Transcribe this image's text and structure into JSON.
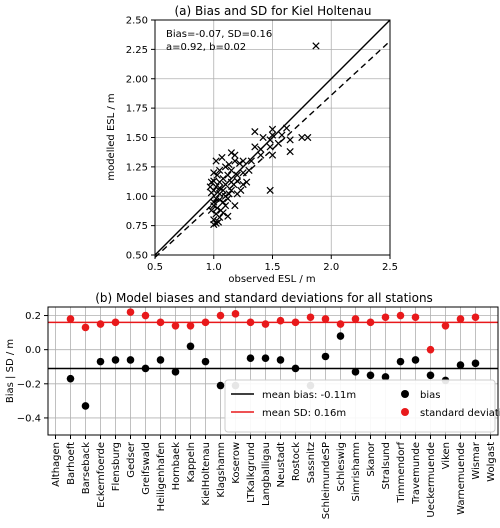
{
  "chart_data": [
    {
      "type": "scatter",
      "title": "(a) Bias and SD for Kiel Holtenau",
      "xlabel": "observed ESL / m",
      "ylabel": "modelled ESL / m",
      "xlim": [
        0.5,
        2.5
      ],
      "ylim": [
        0.5,
        2.5
      ],
      "xticks": [
        "0.5",
        "1.0",
        "1.5",
        "2.0",
        "2.5"
      ],
      "yticks": [
        "0.50",
        "0.75",
        "1.00",
        "1.25",
        "1.50",
        "1.75",
        "2.00",
        "2.25",
        "2.50"
      ],
      "grid": true,
      "annotation_lines": [
        "Bias=-0.07, SD=0.16",
        "a=0.92, b=0.02"
      ],
      "identity_line": {
        "style": "solid"
      },
      "fit_line": {
        "style": "dashed",
        "slope": 0.92,
        "intercept": 0.02
      },
      "points": [
        [
          1.87,
          2.28
        ],
        [
          1.8,
          1.5
        ],
        [
          1.75,
          1.5
        ],
        [
          1.65,
          1.48
        ],
        [
          1.65,
          1.38
        ],
        [
          1.62,
          1.58
        ],
        [
          1.58,
          1.52
        ],
        [
          1.55,
          1.45
        ],
        [
          1.5,
          1.57
        ],
        [
          1.5,
          1.52
        ],
        [
          1.48,
          1.48
        ],
        [
          1.48,
          1.42
        ],
        [
          1.5,
          1.35
        ],
        [
          1.48,
          1.05
        ],
        [
          1.42,
          1.5
        ],
        [
          1.4,
          1.4
        ],
        [
          1.4,
          1.35
        ],
        [
          1.35,
          1.55
        ],
        [
          1.35,
          1.42
        ],
        [
          1.32,
          1.3
        ],
        [
          1.3,
          1.22
        ],
        [
          1.28,
          1.12
        ],
        [
          1.25,
          1.2
        ],
        [
          1.25,
          1.1
        ],
        [
          1.23,
          1.05
        ],
        [
          1.22,
          1.28
        ],
        [
          1.2,
          1.18
        ],
        [
          1.2,
          1.13
        ],
        [
          1.2,
          1.02
        ],
        [
          1.18,
          1.35
        ],
        [
          1.18,
          1.3
        ],
        [
          1.17,
          1.1
        ],
        [
          1.15,
          1.37
        ],
        [
          1.15,
          1.22
        ],
        [
          1.15,
          1.12
        ],
        [
          1.15,
          1.05
        ],
        [
          1.13,
          1.27
        ],
        [
          1.12,
          1.18
        ],
        [
          1.12,
          0.98
        ],
        [
          1.1,
          1.25
        ],
        [
          1.1,
          1.1
        ],
        [
          1.1,
          1.0
        ],
        [
          1.1,
          0.92
        ],
        [
          1.08,
          1.15
        ],
        [
          1.08,
          1.05
        ],
        [
          1.08,
          0.95
        ],
        [
          1.07,
          1.33
        ],
        [
          1.06,
          0.88
        ],
        [
          1.05,
          1.22
        ],
        [
          1.05,
          1.12
        ],
        [
          1.05,
          1.07
        ],
        [
          1.05,
          1.02
        ],
        [
          1.05,
          0.97
        ],
        [
          1.05,
          0.82
        ],
        [
          1.03,
          1.18
        ],
        [
          1.03,
          0.9
        ],
        [
          1.02,
          1.3
        ],
        [
          1.02,
          1.08
        ],
        [
          1.02,
          0.98
        ],
        [
          1.02,
          0.85
        ],
        [
          1.02,
          0.77
        ],
        [
          1.0,
          1.2
        ],
        [
          1.0,
          1.13
        ],
        [
          1.0,
          1.05
        ],
        [
          1.0,
          0.95
        ],
        [
          1.0,
          0.92
        ],
        [
          1.0,
          0.8
        ],
        [
          1.0,
          0.76
        ],
        [
          0.98,
          1.12
        ],
        [
          0.98,
          1.03
        ],
        [
          0.98,
          0.88
        ],
        [
          0.97,
          1.08
        ],
        [
          1.04,
          0.78
        ],
        [
          1.12,
          0.83
        ],
        [
          1.18,
          0.92
        ],
        [
          1.25,
          1.3
        ],
        [
          1.13,
          1.02
        ],
        [
          1.08,
          0.86
        ]
      ]
    },
    {
      "type": "scatter",
      "title": "(b) Model biases and standard deviations for all stations",
      "ylabel": "Bias | SD / m",
      "ylim": [
        -0.5,
        0.25
      ],
      "yticks": [
        "0.2",
        "0.0",
        "−0.2",
        "−0.4"
      ],
      "grid": true,
      "categories": [
        "Althagen",
        "Barhoeft",
        "Barseback",
        "Eckernfoerde",
        "Flensburg",
        "Gedser",
        "Greifswald",
        "Heiligenhafen",
        "Hornbaek",
        "Kappeln",
        "KielHoltenau",
        "Klagshamn",
        "Koserow",
        "LTKalkgrund",
        "Langballigau",
        "Neustadt",
        "Rostock",
        "Sassnitz",
        "SchleimundeSP",
        "Schleswig",
        "Simrishamn",
        "Skanor",
        "Stralsund",
        "Timmendorf",
        "Travemunde",
        "Ueckermuende",
        "Viken",
        "Warnemuende",
        "Wismar",
        "Wolgast"
      ],
      "series": [
        {
          "name": "bias",
          "color": "#000000",
          "values": [
            null,
            -0.17,
            -0.33,
            -0.07,
            -0.06,
            -0.06,
            -0.11,
            -0.06,
            -0.13,
            0.02,
            -0.07,
            -0.21,
            -0.21,
            -0.05,
            -0.05,
            -0.06,
            -0.11,
            -0.21,
            -0.04,
            0.08,
            -0.13,
            -0.15,
            -0.16,
            -0.07,
            -0.06,
            -0.15,
            -0.18,
            -0.09,
            -0.08,
            null
          ]
        },
        {
          "name": "standard deviation",
          "color": "#e8191b",
          "values": [
            null,
            0.18,
            0.13,
            0.15,
            0.16,
            0.22,
            0.2,
            0.16,
            0.14,
            0.14,
            0.16,
            0.2,
            0.21,
            0.16,
            0.15,
            0.17,
            0.16,
            0.19,
            0.18,
            0.15,
            0.18,
            0.16,
            0.19,
            0.2,
            0.19,
            0.0,
            0.14,
            0.18,
            0.19,
            null
          ]
        }
      ],
      "reference_lines": [
        {
          "label": "mean bias: -0.11m",
          "value": -0.11,
          "color": "#000000"
        },
        {
          "label": "mean SD: 0.16m",
          "value": 0.16,
          "color": "#e8191b"
        }
      ],
      "legend_position": "lower-right"
    }
  ]
}
